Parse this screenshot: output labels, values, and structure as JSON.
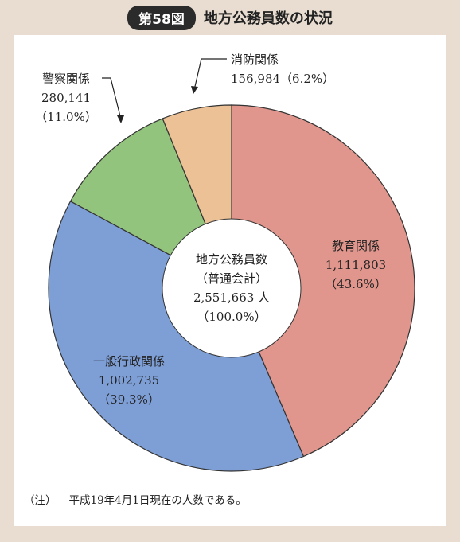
{
  "header": {
    "badge": "第58図",
    "title": "地方公務員数の状況"
  },
  "chart_data": {
    "type": "pie",
    "center_label": [
      "地方公務員数",
      "（普通会計）",
      "2,551,663 人",
      "（100.0%）"
    ],
    "slices": [
      {
        "name": "教育関係",
        "value": 1111803,
        "value_label": "1,111,803",
        "pct_label": "（43.6%）",
        "percent": 43.6,
        "color": "#e0968d"
      },
      {
        "name": "一般行政関係",
        "value": 1002735,
        "value_label": "1,002,735",
        "pct_label": "（39.3%）",
        "percent": 39.3,
        "color": "#7e9fd6"
      },
      {
        "name": "警察関係",
        "value": 280141,
        "value_label": "280,141",
        "pct_label": "（11.0%）",
        "percent": 11.0,
        "color": "#93c47d"
      },
      {
        "name": "消防関係",
        "value": 156984,
        "value_label": "156,984（6.2%）",
        "pct_label": "",
        "percent": 6.2,
        "color": "#ebc195"
      }
    ]
  },
  "note": {
    "prefix": "（注）",
    "text": "平成19年4月1日現在の人数である。"
  }
}
